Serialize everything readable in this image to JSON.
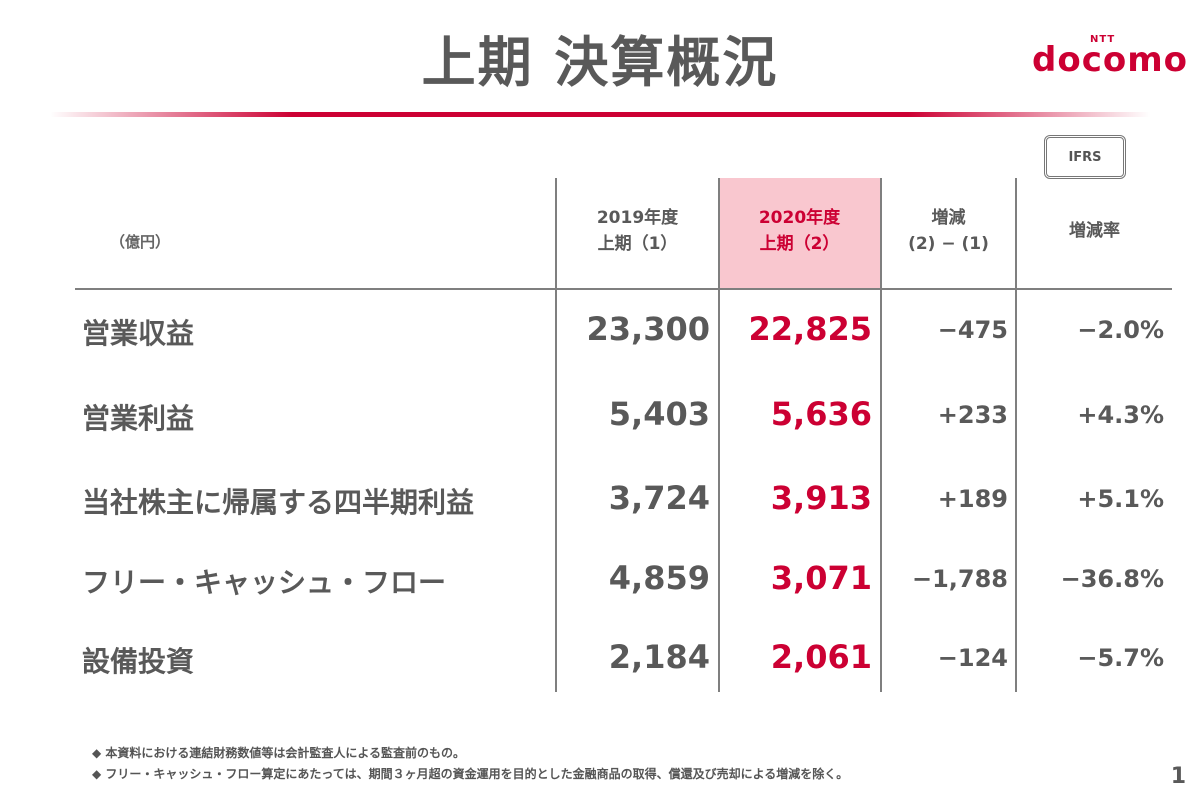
{
  "title": "上期 決算概況",
  "logo": {
    "ntt": "NTT",
    "brand": "docomo"
  },
  "badge": "IFRS",
  "colors": {
    "accent": "#cc0033",
    "highlight_bg": "#f9c7cf",
    "text": "#595959"
  },
  "table": {
    "unit": "（億円）",
    "headers": [
      {
        "line1": "2019年度",
        "line2": "上期（1）"
      },
      {
        "line1": "2020年度",
        "line2": "上期（2）"
      },
      {
        "line1": "増減",
        "line2": "(2) − (1)"
      },
      {
        "line1": "増減率",
        "line2": ""
      }
    ],
    "rows": [
      {
        "label": "営業収益",
        "fy2019": "23,300",
        "fy2020": "22,825",
        "change": "−475",
        "rate": "−2.0%"
      },
      {
        "label": "営業利益",
        "fy2019": "5,403",
        "fy2020": "5,636",
        "change": "+233",
        "rate": "+4.3%"
      },
      {
        "label": "当社株主に帰属する四半期利益",
        "fy2019": "3,724",
        "fy2020": "3,913",
        "change": "+189",
        "rate": "+5.1%"
      },
      {
        "label": "フリー・キャッシュ・フロー",
        "fy2019": "4,859",
        "fy2020": "3,071",
        "change": "−1,788",
        "rate": "−36.8%"
      },
      {
        "label": "設備投資",
        "fy2019": "2,184",
        "fy2020": "2,061",
        "change": "−124",
        "rate": "−5.7%"
      }
    ]
  },
  "notes": [
    "◆ 本資料における連結財務数値等は会計監査人による監査前のもの。",
    "◆ フリー・キャッシュ・フロー算定にあたっては、期間３ヶ月超の資金運用を目的とした金融商品の取得、償還及び売却による増減を除く。"
  ],
  "page_number": "1"
}
